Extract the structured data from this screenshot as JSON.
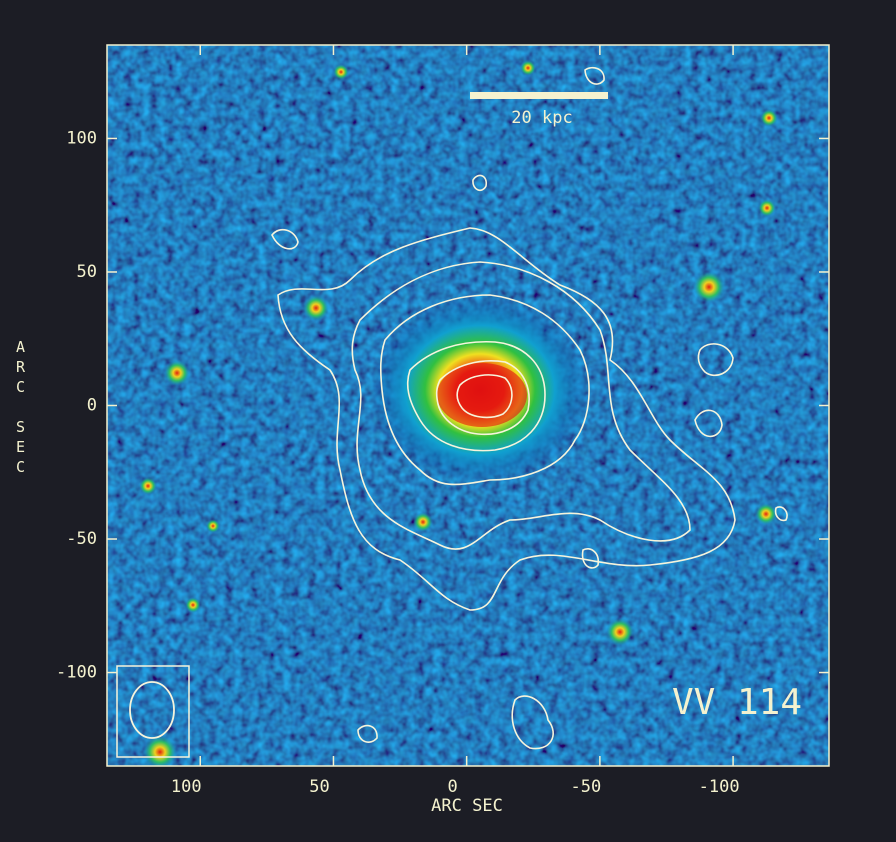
{
  "chart_data": {
    "type": "image",
    "annotations": [
      "20 kpc",
      "VV 114"
    ],
    "xlabel": "ARC SEC",
    "ylabel": "ARC SEC",
    "xlim": [
      135,
      -136
    ],
    "ylim": [
      -135,
      135
    ],
    "xticks": [
      100,
      50,
      0,
      -50,
      -100
    ],
    "yticks": [
      100,
      50,
      0,
      -50,
      -100
    ]
  }
}
